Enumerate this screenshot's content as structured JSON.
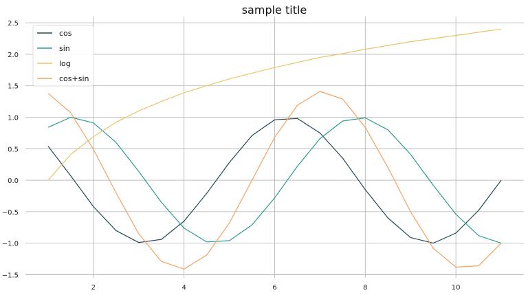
{
  "chart_data": {
    "type": "line",
    "title": "sample title",
    "xlabel": "",
    "ylabel": "",
    "xlim": [
      0.5,
      11.5
    ],
    "ylim": [
      -1.55,
      2.6
    ],
    "xticks": [
      2,
      4,
      6,
      8,
      10
    ],
    "xtick_labels": [
      "2",
      "4",
      "6",
      "8",
      "10"
    ],
    "yticks": [
      -1.5,
      -1.0,
      -0.5,
      0.0,
      0.5,
      1.0,
      1.5,
      2.0,
      2.5
    ],
    "ytick_labels": [
      "−1.5",
      "−1.0",
      "−0.5",
      "0.0",
      "0.5",
      "1.0",
      "1.5",
      "2.0",
      "2.5"
    ],
    "grid": true,
    "legend_position": "top-left",
    "x": [
      1.0,
      1.5,
      2.0,
      2.5,
      3.0,
      3.5,
      4.0,
      4.5,
      5.0,
      5.5,
      6.0,
      6.5,
      7.0,
      7.5,
      8.0,
      8.5,
      9.0,
      9.5,
      10.0,
      10.5,
      11.0
    ],
    "series": [
      {
        "name": "cos",
        "color": "#264653",
        "values": [
          0.54,
          0.07,
          -0.42,
          -0.8,
          -0.99,
          -0.94,
          -0.65,
          -0.21,
          0.28,
          0.71,
          0.96,
          0.98,
          0.75,
          0.35,
          -0.15,
          -0.6,
          -0.91,
          -1.0,
          -0.84,
          -0.48,
          0.0
        ]
      },
      {
        "name": "sin",
        "color": "#2a9d8f",
        "values": [
          0.84,
          1.0,
          0.91,
          0.6,
          0.14,
          -0.35,
          -0.76,
          -0.98,
          -0.96,
          -0.71,
          -0.28,
          0.22,
          0.66,
          0.94,
          0.99,
          0.8,
          0.41,
          -0.08,
          -0.54,
          -0.88,
          -1.0
        ]
      },
      {
        "name": "log",
        "color": "#e9c46a",
        "values": [
          0.0,
          0.41,
          0.69,
          0.92,
          1.1,
          1.25,
          1.39,
          1.5,
          1.61,
          1.7,
          1.79,
          1.87,
          1.95,
          2.01,
          2.08,
          2.14,
          2.2,
          2.25,
          2.3,
          2.35,
          2.4
        ]
      },
      {
        "name": "cos+sin",
        "color": "#f4a261",
        "values": [
          1.38,
          1.07,
          0.49,
          -0.2,
          -0.85,
          -1.29,
          -1.41,
          -1.19,
          -0.68,
          0.0,
          0.68,
          1.19,
          1.41,
          1.29,
          0.84,
          0.2,
          -0.5,
          -1.08,
          -1.38,
          -1.36,
          -1.0
        ]
      }
    ]
  }
}
